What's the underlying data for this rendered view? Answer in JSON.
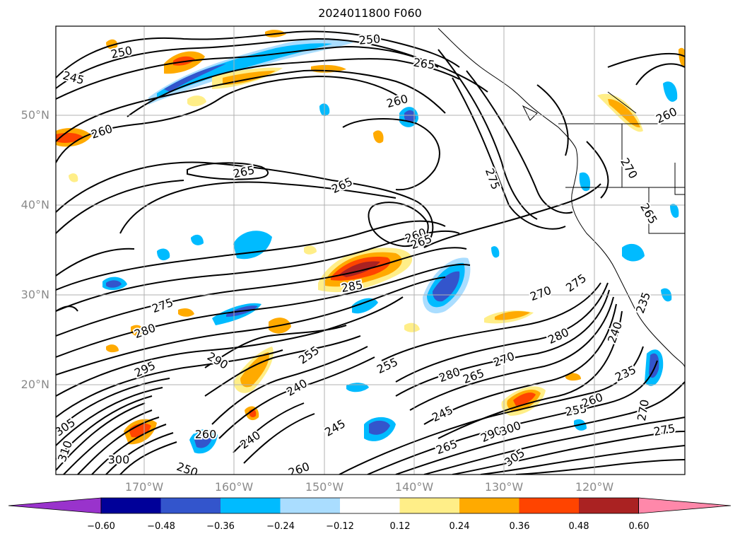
{
  "title": "2024011800 F060",
  "lat_labels": [
    "50°N",
    "40°N",
    "30°N",
    "20°N"
  ],
  "lon_labels": [
    "170°W",
    "160°W",
    "150°W",
    "140°W",
    "130°W",
    "120°W"
  ],
  "contour_labels": [
    "250",
    "250",
    "245",
    "265",
    "260",
    "260",
    "265",
    "265",
    "275",
    "270",
    "265",
    "260",
    "265",
    "285",
    "275",
    "280",
    "295",
    "290",
    "255",
    "240",
    "255",
    "280",
    "265",
    "270",
    "270",
    "275",
    "280",
    "240",
    "235",
    "245",
    "255",
    "260",
    "265",
    "290",
    "300",
    "305",
    "260",
    "245",
    "240",
    "250",
    "260",
    "305",
    "310",
    "300",
    "270",
    "275",
    "235",
    "260"
  ],
  "colorbar": {
    "ticks": [
      "−0.60",
      "−0.48",
      "−0.36",
      "−0.24",
      "−0.12",
      "0.12",
      "0.24",
      "0.36",
      "0.48",
      "0.60"
    ],
    "colors": [
      "#9933cc",
      "#000099",
      "#3355cc",
      "#00bbff",
      "#aaddff",
      "#ffffff",
      "#ffee88",
      "#ffaa00",
      "#ff4400",
      "#aa2222",
      "#ff88aa"
    ]
  },
  "colors": {
    "contour": "#000000",
    "grid": "#b0b0b0",
    "coast": "#000000"
  }
}
